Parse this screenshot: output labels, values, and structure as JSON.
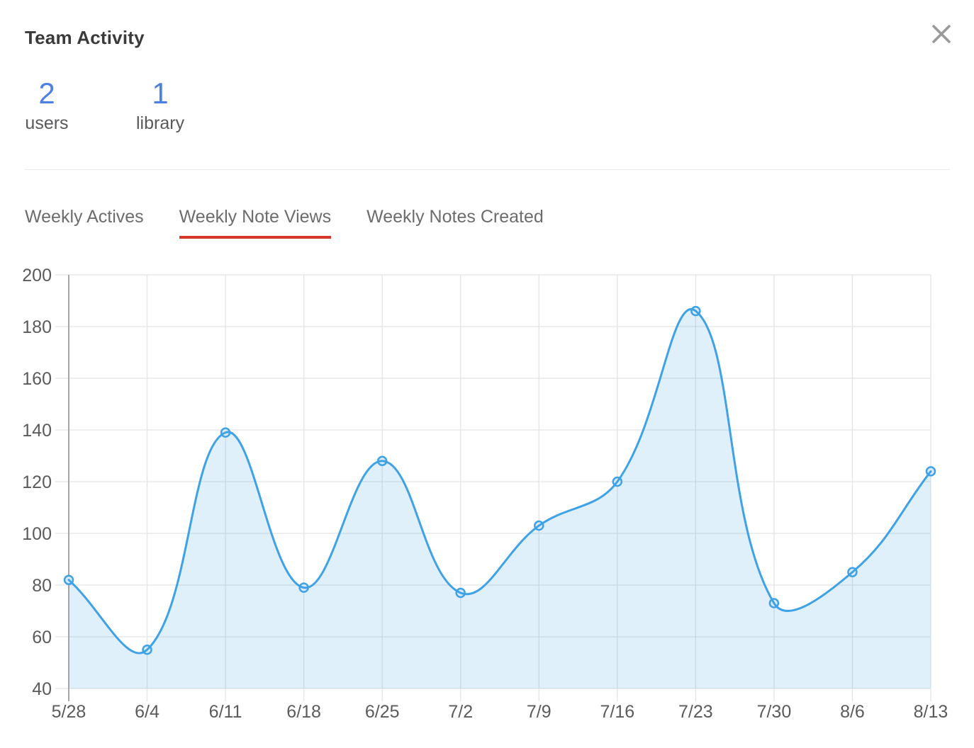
{
  "header": {
    "title": "Team Activity"
  },
  "stats": [
    {
      "value": "2",
      "label": "users"
    },
    {
      "value": "1",
      "label": "library"
    }
  ],
  "tabs": [
    {
      "label": "Weekly Actives",
      "active": false
    },
    {
      "label": "Weekly Note Views",
      "active": true
    },
    {
      "label": "Weekly Notes Created",
      "active": false
    }
  ],
  "colors": {
    "stat_number": "#4c80e2",
    "active_tab_underline": "#d8362a",
    "line": "#3fa2e6",
    "area_fill": "rgba(63,162,230,0.16)",
    "marker_fill": "#d9ebf9",
    "grid": "#e4e4e4",
    "axis": "#a6a6a6",
    "tick_label": "#5a5b5d"
  },
  "chart_data": {
    "type": "area",
    "title": "",
    "categories": [
      "5/28",
      "6/4",
      "6/11",
      "6/18",
      "6/25",
      "7/2",
      "7/9",
      "7/16",
      "7/23",
      "7/30",
      "8/6",
      "8/13"
    ],
    "series": [
      {
        "name": "Weekly Note Views",
        "values": [
          82,
          55,
          139,
          79,
          128,
          77,
          103,
          120,
          186,
          73,
          85,
          124
        ]
      }
    ],
    "ylim": [
      40,
      200
    ],
    "yticks": [
      40,
      60,
      80,
      100,
      120,
      140,
      160,
      180,
      200
    ],
    "grid": true,
    "legend": "none",
    "xlabel": "",
    "ylabel": ""
  }
}
